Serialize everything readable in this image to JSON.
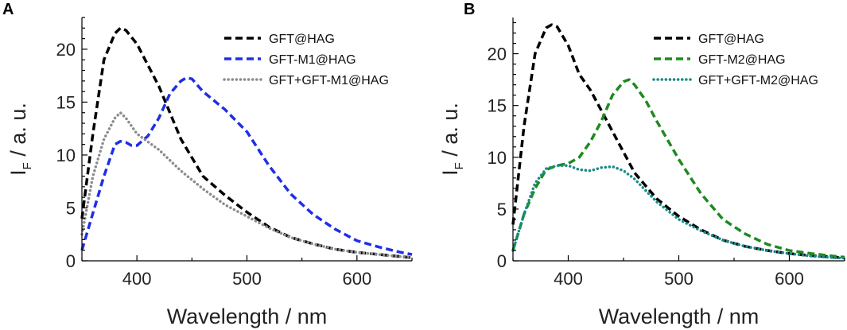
{
  "chart_data": [
    {
      "panel_label": "A",
      "type": "line",
      "xlabel": "Wavelength / nm",
      "ylabel_main": "I",
      "ylabel_sub": "F",
      "ylabel_rest": " / a. u.",
      "xlim": [
        350,
        650
      ],
      "ylim": [
        0,
        23
      ],
      "xticks": [
        400,
        500,
        600
      ],
      "xtick_labels": [
        "400",
        "500",
        "600"
      ],
      "yticks": [
        0,
        5,
        10,
        15,
        20
      ],
      "ytick_labels": [
        "0",
        "5",
        "10",
        "15",
        "20"
      ],
      "legend_position": "top-right",
      "series": [
        {
          "name": "GFT@HAG",
          "color": "#000000",
          "style": "dashed",
          "x": [
            350,
            360,
            370,
            380,
            385,
            390,
            400,
            410,
            420,
            440,
            460,
            480,
            500,
            520,
            540,
            560,
            580,
            600,
            620,
            640,
            650
          ],
          "y": [
            4.0,
            12.0,
            19.0,
            21.5,
            22.0,
            21.8,
            20.5,
            18.5,
            16.5,
            11.5,
            8.0,
            6.2,
            4.6,
            3.2,
            2.2,
            1.6,
            1.1,
            0.8,
            0.6,
            0.4,
            0.3
          ]
        },
        {
          "name": "GFT-M1@HAG",
          "color": "#1f2fe6",
          "style": "dashed",
          "x": [
            350,
            360,
            370,
            380,
            385,
            390,
            395,
            400,
            410,
            420,
            430,
            440,
            445,
            450,
            460,
            480,
            500,
            520,
            540,
            560,
            580,
            600,
            620,
            640,
            650
          ],
          "y": [
            1.0,
            4.5,
            8.0,
            11.0,
            11.3,
            11.2,
            10.9,
            10.9,
            11.8,
            13.5,
            15.8,
            17.0,
            17.3,
            17.2,
            16.0,
            14.3,
            12.2,
            9.0,
            6.3,
            4.4,
            3.0,
            1.9,
            1.3,
            0.8,
            0.6
          ]
        },
        {
          "name": "GFT+GFT-M1@HAG",
          "color": "#8c8c8c",
          "style": "dotted",
          "x": [
            350,
            360,
            370,
            380,
            385,
            390,
            400,
            420,
            440,
            460,
            480,
            500,
            520,
            540,
            560,
            580,
            600,
            620,
            640,
            650
          ],
          "y": [
            2.5,
            8.0,
            11.5,
            13.5,
            14.0,
            13.5,
            12.0,
            10.5,
            8.5,
            6.8,
            5.3,
            4.2,
            3.1,
            2.2,
            1.6,
            1.1,
            0.8,
            0.6,
            0.4,
            0.35
          ]
        }
      ]
    },
    {
      "panel_label": "B",
      "type": "line",
      "xlabel": "Wavelength / nm",
      "ylabel_main": "I",
      "ylabel_sub": "F",
      "ylabel_rest": " / a. u.",
      "xlim": [
        350,
        650
      ],
      "ylim": [
        0,
        23.5
      ],
      "xticks": [
        400,
        500,
        600
      ],
      "xtick_labels": [
        "400",
        "500",
        "600"
      ],
      "yticks": [
        0,
        5,
        10,
        15,
        20
      ],
      "ytick_labels": [
        "0",
        "5",
        "10",
        "15",
        "20"
      ],
      "legend_position": "top-right",
      "series": [
        {
          "name": "GFT@HAG",
          "color": "#000000",
          "style": "dashed",
          "x": [
            350,
            360,
            370,
            380,
            385,
            390,
            400,
            410,
            420,
            440,
            460,
            480,
            500,
            520,
            540,
            560,
            580,
            600,
            620,
            640,
            650
          ],
          "y": [
            3.5,
            13.0,
            20.0,
            22.5,
            22.8,
            22.6,
            20.8,
            18.0,
            16.5,
            12.5,
            8.5,
            6.0,
            4.3,
            3.0,
            2.0,
            1.4,
            1.0,
            0.7,
            0.5,
            0.35,
            0.3
          ]
        },
        {
          "name": "GFT-M2@HAG",
          "color": "#1e8a1e",
          "style": "dashed",
          "x": [
            350,
            360,
            370,
            380,
            390,
            400,
            410,
            420,
            430,
            440,
            450,
            455,
            460,
            470,
            480,
            500,
            520,
            540,
            560,
            580,
            600,
            620,
            640,
            650
          ],
          "y": [
            1.0,
            4.5,
            7.0,
            8.8,
            9.2,
            9.4,
            10.0,
            11.5,
            13.5,
            16.0,
            17.3,
            17.5,
            17.0,
            15.5,
            13.5,
            9.8,
            6.5,
            4.0,
            2.6,
            1.6,
            1.0,
            0.7,
            0.45,
            0.35
          ]
        },
        {
          "name": "GFT+GFT-M2@HAG",
          "color": "#1a8a8a",
          "style": "dotted",
          "x": [
            350,
            360,
            370,
            380,
            390,
            400,
            410,
            420,
            430,
            440,
            450,
            460,
            480,
            500,
            520,
            540,
            560,
            580,
            600,
            620,
            640,
            650
          ],
          "y": [
            1.0,
            4.5,
            7.5,
            8.9,
            9.2,
            9.2,
            8.8,
            8.7,
            9.0,
            9.1,
            8.7,
            7.9,
            5.7,
            4.0,
            2.9,
            2.0,
            1.4,
            1.0,
            0.7,
            0.45,
            0.3,
            0.25
          ]
        }
      ]
    }
  ]
}
